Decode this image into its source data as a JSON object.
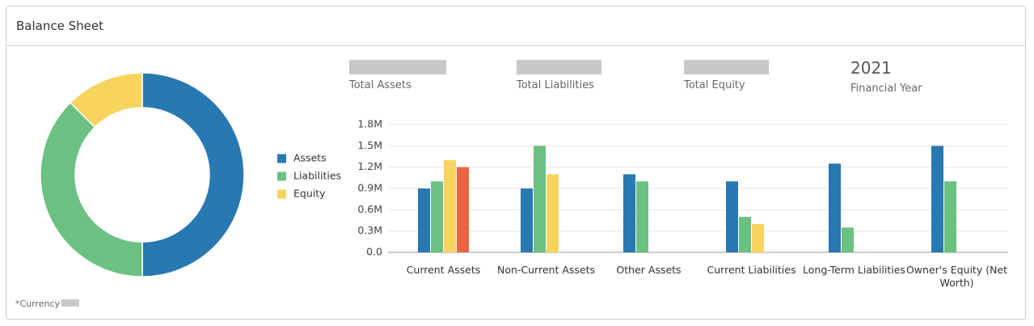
{
  "header": {
    "title": "Balance Sheet"
  },
  "kpis": [
    {
      "label": "Total Assets"
    },
    {
      "label": "Total Liabilities"
    },
    {
      "label": "Total Equity"
    },
    {
      "value": "2021",
      "label": "Financial Year"
    }
  ],
  "footnote": "*Currency",
  "chart_data": [
    {
      "type": "pie",
      "donut": true,
      "categories": [
        "Assets",
        "Liabilities",
        "Equity"
      ],
      "values": [
        50,
        37.5,
        12.5
      ],
      "colors": [
        "#2878b2",
        "#6bc181",
        "#f8d45e"
      ]
    },
    {
      "type": "bar",
      "categories": [
        "Current Assets",
        "Non-Current Assets",
        "Other Assets",
        "Current Liabilities",
        "Long-Term Liabilities",
        "Owner's Equity (Net Worth)"
      ],
      "series": [
        {
          "color": "#2878b2",
          "values": [
            900000,
            900000,
            1100000,
            1000000,
            1250000,
            1500000
          ]
        },
        {
          "color": "#6bc181",
          "values": [
            1000000,
            1500000,
            1000000,
            500000,
            350000,
            1000000
          ]
        },
        {
          "color": "#f8d45e",
          "values": [
            1300000,
            1100000,
            null,
            400000,
            null,
            null
          ]
        },
        {
          "color": "#e9653f",
          "values": [
            1200000,
            null,
            null,
            null,
            null,
            null
          ]
        }
      ],
      "ylim": [
        0,
        1800000
      ],
      "yticks": [
        {
          "value": 0,
          "label": "0.0"
        },
        {
          "value": 300000,
          "label": "0.3M"
        },
        {
          "value": 600000,
          "label": "0.6M"
        },
        {
          "value": 900000,
          "label": "0.9M"
        },
        {
          "value": 1200000,
          "label": "1.2M"
        },
        {
          "value": 1500000,
          "label": "1.5M"
        },
        {
          "value": 1800000,
          "label": "1.8M"
        }
      ],
      "grid": true
    }
  ]
}
